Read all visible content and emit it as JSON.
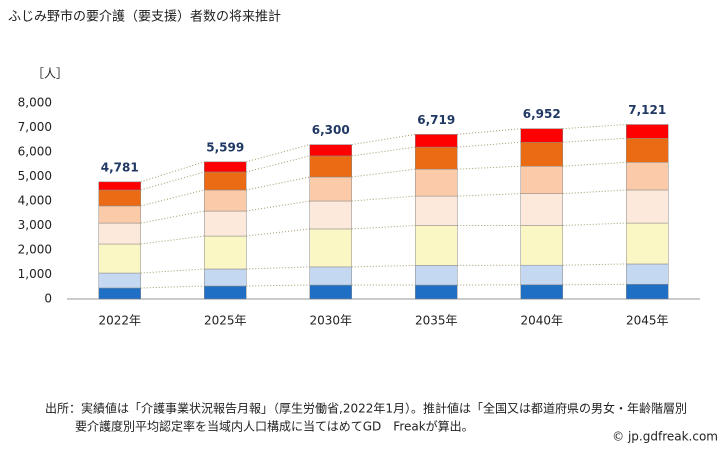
{
  "chart_data": {
    "type": "stacked_bar",
    "title": "ふじみ野市の要介護（要支援）者数の将来推計",
    "y_unit": "［人］",
    "categories": [
      "2022年",
      "2025年",
      "2030年",
      "2035年",
      "2040年",
      "2045年"
    ],
    "series": [
      {
        "color": "#1f6fc5",
        "values": [
          450,
          530,
          570,
          570,
          580,
          600
        ]
      },
      {
        "color": "#c5d8f1",
        "values": [
          610,
          695,
          740,
          800,
          800,
          830
        ]
      },
      {
        "color": "#fbf7c5",
        "values": [
          1185,
          1345,
          1550,
          1630,
          1620,
          1670
        ]
      },
      {
        "color": "#fde9dc",
        "values": [
          855,
          1020,
          1140,
          1200,
          1300,
          1350
        ]
      },
      {
        "color": "#fbcaa9",
        "values": [
          700,
          860,
          980,
          1100,
          1120,
          1130
        ]
      },
      {
        "color": "#ea6b13",
        "values": [
          650,
          735,
          860,
          900,
          980,
          980
        ]
      },
      {
        "color": "#ff0000",
        "values": [
          331,
          414,
          460,
          519,
          552,
          561
        ]
      }
    ],
    "totals": [
      4781,
      5599,
      6300,
      6719,
      6952,
      7121
    ],
    "total_labels": [
      "4,781",
      "5,599",
      "6,300",
      "6,719",
      "6,952",
      "7,121"
    ],
    "ylim": [
      0,
      8000
    ],
    "yticks": [
      0,
      {
        "value": 1000,
        "label": "1,000"
      },
      {
        "value": 2000,
        "label": "2,000"
      },
      {
        "value": 3000,
        "label": "3,000"
      },
      {
        "value": 4000,
        "label": "4,000"
      },
      {
        "value": 5000,
        "label": "5,000"
      },
      {
        "value": 6000,
        "label": "6,000"
      },
      {
        "value": 7000,
        "label": "7,000"
      },
      {
        "value": 8000,
        "label": "8,000"
      }
    ],
    "grid": false,
    "source_lines": [
      "出所：実績値は「介護事業状況報告月報」（厚生労働省,2022年1月）。推計値は「全国又は都道府県の男女・年齢階層別",
      "要介護度別平均認定率を当域内人口構成に当てはめてGD　Freakが算出。"
    ],
    "copyright": "© jp.gdfreak.com"
  }
}
